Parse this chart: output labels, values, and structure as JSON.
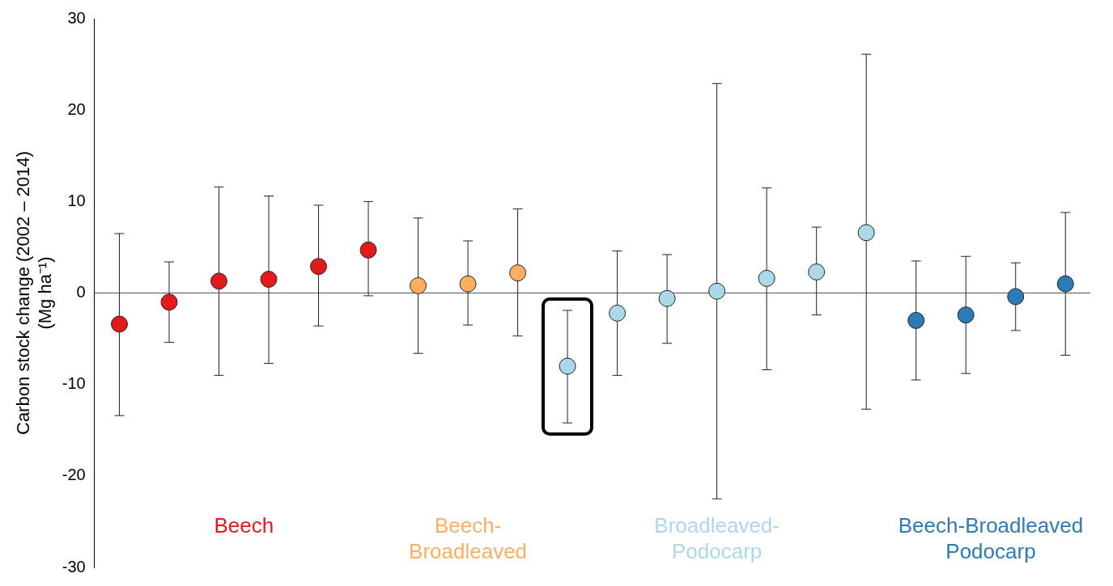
{
  "chart_data": {
    "type": "scatter",
    "ylabel": "Carbon stock change (2002 – 2014)\n(Mg ha⁻¹)",
    "categories": [
      null,
      null,
      null,
      null,
      null,
      null,
      null,
      null,
      null,
      null,
      null,
      null,
      null,
      null,
      null,
      null,
      null,
      null,
      null,
      null
    ],
    "series": [
      {
        "name": "Beech",
        "color": "#e31a1c",
        "values": [
          -3.4,
          -1.0,
          1.3,
          1.5,
          2.9,
          4.7,
          null,
          null,
          null,
          null,
          null,
          null,
          null,
          null,
          null,
          null,
          null,
          null,
          null,
          null
        ],
        "errors": [
          [
            -13.4,
            6.5
          ],
          [
            -5.4,
            3.4
          ],
          [
            -9.0,
            11.6
          ],
          [
            -7.7,
            10.6
          ],
          [
            -3.6,
            9.6
          ],
          [
            -0.3,
            10.0
          ],
          null,
          null,
          null,
          null,
          null,
          null,
          null,
          null,
          null,
          null,
          null,
          null,
          null,
          null
        ]
      },
      {
        "name": "Beech-Broadleaved",
        "color": "#fdae61",
        "values": [
          null,
          null,
          null,
          null,
          null,
          null,
          0.8,
          1.0,
          2.2,
          null,
          null,
          null,
          null,
          null,
          null,
          null,
          null,
          null,
          null,
          null
        ],
        "errors": [
          null,
          null,
          null,
          null,
          null,
          null,
          [
            -6.6,
            8.2
          ],
          [
            -3.5,
            5.7
          ],
          [
            -4.7,
            9.2
          ],
          null,
          null,
          null,
          null,
          null,
          null,
          null,
          null,
          null,
          null,
          null
        ]
      },
      {
        "name": "Broadleaved-Podocarp",
        "color": "#abd9e9",
        "values": [
          null,
          null,
          null,
          null,
          null,
          null,
          null,
          null,
          null,
          -8.0,
          -2.2,
          -0.6,
          0.2,
          1.6,
          2.3,
          6.6,
          null,
          null,
          null,
          null
        ],
        "errors": [
          null,
          null,
          null,
          null,
          null,
          null,
          null,
          null,
          null,
          [
            -14.2,
            -1.9
          ],
          [
            -9.0,
            4.6
          ],
          [
            -5.5,
            4.2
          ],
          [
            -22.5,
            22.9
          ],
          [
            -8.4,
            11.5
          ],
          [
            -2.4,
            7.2
          ],
          [
            -12.7,
            26.1
          ],
          null,
          null,
          null,
          null
        ]
      },
      {
        "name": "Beech-Broadleaved Podocarp",
        "color": "#2c7bb6",
        "values": [
          null,
          null,
          null,
          null,
          null,
          null,
          null,
          null,
          null,
          null,
          null,
          null,
          null,
          null,
          null,
          null,
          -3.0,
          -2.4,
          -0.4,
          1.0
        ],
        "errors": [
          null,
          null,
          null,
          null,
          null,
          null,
          null,
          null,
          null,
          null,
          null,
          null,
          null,
          null,
          null,
          null,
          [
            -9.5,
            3.5
          ],
          [
            -8.8,
            4.0
          ],
          [
            -4.1,
            3.3
          ],
          [
            -6.8,
            8.8
          ]
        ]
      }
    ],
    "ylim": [
      -30,
      30
    ],
    "yticks": [
      -30,
      -20,
      -10,
      0,
      10,
      20,
      30
    ],
    "grid": false,
    "legend": false,
    "marker": "circle",
    "tick_labels": "y",
    "ref_lines": [
      {
        "axis": "y",
        "value": 0,
        "color": "#555555"
      }
    ]
  }
}
